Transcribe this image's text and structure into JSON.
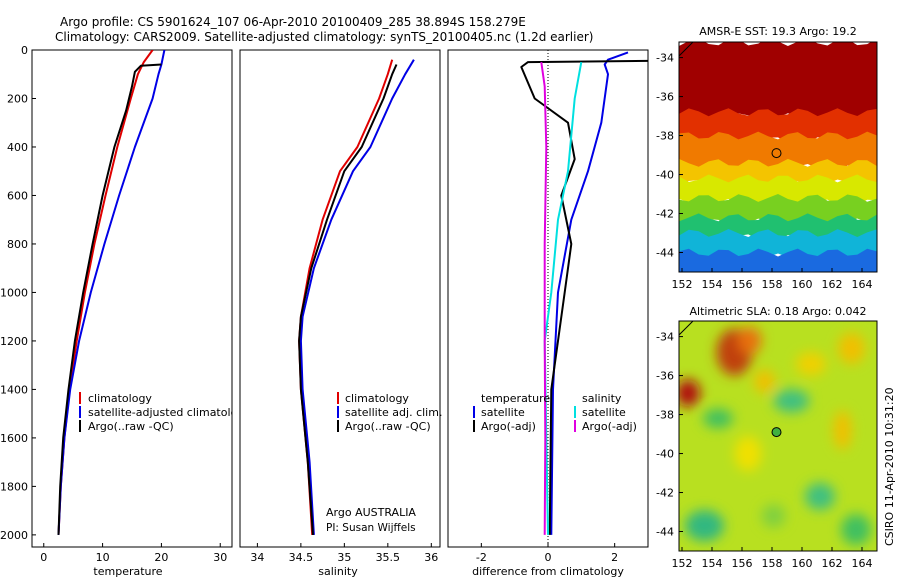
{
  "header": {
    "line1": "Argo profile: CS 5901624_107 06-Apr-2010 20100409_285 38.894S 158.279E",
    "line2": "Climatology: CARS2009. Satellite-adjusted climatology: synTS_20100405.nc (1.2d earlier)"
  },
  "depth_ticks": [
    "0",
    "200",
    "400",
    "600",
    "800",
    "1000",
    "1200",
    "1400",
    "1600",
    "1800",
    "2000"
  ],
  "credit": "CSIRO 11-Apr-2010 10:31:20",
  "colors": {
    "climatology": "#e00000",
    "satellite": "#0000e6",
    "argo": "#000000",
    "satellite_diff": "#00e0e0",
    "argo_adj": "#e000e0"
  },
  "chart_data": [
    {
      "type": "line",
      "xlabel": "temperature",
      "xticks": [
        "0",
        "10",
        "20",
        "30"
      ],
      "xlim": [
        -2,
        32
      ],
      "ylim": [
        2050,
        0
      ],
      "legend": [
        "climatology",
        "satellite-adjusted climatology",
        "Argo(..raw -QC)"
      ],
      "legend_position": "lower-center",
      "series": [
        {
          "name": "climatology",
          "color": "#e00000",
          "points": [
            [
              18.5,
              0
            ],
            [
              17,
              50
            ],
            [
              16,
              100
            ],
            [
              14.8,
              200
            ],
            [
              12.5,
              400
            ],
            [
              10.5,
              600
            ],
            [
              8.6,
              800
            ],
            [
              7,
              1000
            ],
            [
              5.6,
              1200
            ],
            [
              4.4,
              1400
            ],
            [
              3.5,
              1600
            ],
            [
              2.9,
              1800
            ],
            [
              2.5,
              2000
            ]
          ]
        },
        {
          "name": "satellite-adjusted climatology",
          "color": "#0000e6",
          "points": [
            [
              20.5,
              0
            ],
            [
              20,
              60
            ],
            [
              19.5,
              100
            ],
            [
              18.5,
              200
            ],
            [
              15.5,
              400
            ],
            [
              12.8,
              600
            ],
            [
              10.3,
              800
            ],
            [
              8,
              1000
            ],
            [
              6,
              1200
            ],
            [
              4.5,
              1400
            ],
            [
              3.5,
              1600
            ],
            [
              2.9,
              1800
            ],
            [
              2.5,
              2000
            ]
          ]
        },
        {
          "name": "Argo(..raw -QC)",
          "color": "#000000",
          "points": [
            [
              20,
              60
            ],
            [
              16.5,
              65
            ],
            [
              15.5,
              90
            ],
            [
              15,
              150
            ],
            [
              14,
              250
            ],
            [
              12,
              400
            ],
            [
              10,
              600
            ],
            [
              8.3,
              800
            ],
            [
              6.7,
              1000
            ],
            [
              5.3,
              1200
            ],
            [
              4.2,
              1400
            ],
            [
              3.3,
              1600
            ],
            [
              2.8,
              1800
            ],
            [
              2.5,
              2000
            ]
          ]
        }
      ]
    },
    {
      "type": "line",
      "xlabel": "salinity",
      "xticks": [
        "34",
        "34.5",
        "35",
        "35.5",
        "36"
      ],
      "xlim": [
        33.8,
        36.1
      ],
      "ylim": [
        2050,
        0
      ],
      "legend": [
        "climatology",
        "satellite adj. clim.",
        "Argo(..raw -QC)"
      ],
      "legend_position": "lower-right",
      "annotation": [
        "Argo AUSTRALIA",
        "PI: Susan Wijffels"
      ],
      "series": [
        {
          "name": "climatology",
          "color": "#e00000",
          "points": [
            [
              35.55,
              40
            ],
            [
              35.5,
              100
            ],
            [
              35.4,
              200
            ],
            [
              35.15,
              400
            ],
            [
              34.95,
              500
            ],
            [
              34.75,
              700
            ],
            [
              34.6,
              900
            ],
            [
              34.5,
              1100
            ],
            [
              34.48,
              1200
            ],
            [
              34.5,
              1400
            ],
            [
              34.58,
              1700
            ],
            [
              34.63,
              2000
            ]
          ]
        },
        {
          "name": "satellite adj. clim.",
          "color": "#0000e6",
          "points": [
            [
              35.8,
              40
            ],
            [
              35.7,
              100
            ],
            [
              35.55,
              200
            ],
            [
              35.3,
              400
            ],
            [
              35.1,
              500
            ],
            [
              34.85,
              700
            ],
            [
              34.65,
              900
            ],
            [
              34.52,
              1100
            ],
            [
              34.5,
              1200
            ],
            [
              34.52,
              1400
            ],
            [
              34.6,
              1700
            ],
            [
              34.65,
              2000
            ]
          ]
        },
        {
          "name": "Argo(..raw -QC)",
          "color": "#000000",
          "points": [
            [
              35.6,
              60
            ],
            [
              35.55,
              100
            ],
            [
              35.45,
              200
            ],
            [
              35.2,
              400
            ],
            [
              35,
              500
            ],
            [
              34.8,
              700
            ],
            [
              34.62,
              900
            ],
            [
              34.5,
              1100
            ],
            [
              34.48,
              1200
            ],
            [
              34.5,
              1400
            ],
            [
              34.58,
              1700
            ],
            [
              34.64,
              2000
            ]
          ]
        }
      ]
    },
    {
      "type": "line",
      "xlabel": "difference from climatology",
      "xticks": [
        "-2",
        "0",
        "2"
      ],
      "xlim": [
        -3.0,
        3.0
      ],
      "ylim": [
        2050,
        0
      ],
      "legend": [
        "temperature",
        "satellite",
        "Argo(-adj)",
        "salinity",
        "satellite",
        "Argo(-adj)"
      ],
      "legend_position": "lower-center",
      "series": [
        {
          "name": "temperature satellite",
          "color": "#0000e6",
          "points": [
            [
              2.4,
              10
            ],
            [
              1.8,
              40
            ],
            [
              1.7,
              60
            ],
            [
              1.8,
              100
            ],
            [
              1.6,
              300
            ],
            [
              1.2,
              500
            ],
            [
              0.7,
              700
            ],
            [
              0.3,
              1000
            ],
            [
              0.15,
              1400
            ],
            [
              0.1,
              2000
            ]
          ]
        },
        {
          "name": "temperature Argo(-adj)",
          "color": "#000000",
          "points": [
            [
              3,
              45
            ],
            [
              -0.6,
              50
            ],
            [
              -0.8,
              70
            ],
            [
              -0.4,
              200
            ],
            [
              0.6,
              300
            ],
            [
              0.8,
              450
            ],
            [
              0.4,
              600
            ],
            [
              0.7,
              800
            ],
            [
              0.5,
              1000
            ],
            [
              0.3,
              1200
            ],
            [
              0.1,
              1400
            ],
            [
              0.05,
              2000
            ]
          ]
        },
        {
          "name": "salinity satellite",
          "color": "#00e0e0",
          "points": [
            [
              1.0,
              50
            ],
            [
              0.8,
              200
            ],
            [
              0.6,
              500
            ],
            [
              0.3,
              700
            ],
            [
              0.1,
              1000
            ],
            [
              -0.1,
              1200
            ],
            [
              -0.05,
              1600
            ],
            [
              0,
              2000
            ]
          ]
        },
        {
          "name": "salinity Argo(-adj)",
          "color": "#e000e0",
          "points": [
            [
              -0.2,
              50
            ],
            [
              -0.1,
              150
            ],
            [
              -0.05,
              400
            ],
            [
              -0.1,
              800
            ],
            [
              -0.1,
              1200
            ],
            [
              -0.08,
              1600
            ],
            [
              -0.1,
              2000
            ]
          ]
        }
      ]
    },
    {
      "type": "heatmap",
      "title": "AMSR-E SST: 19.3 Argo: 19.2",
      "xticks": [
        "152",
        "154",
        "156",
        "158",
        "160",
        "162",
        "164"
      ],
      "yticks": [
        "-34",
        "-36",
        "-38",
        "-40",
        "-42",
        "-44"
      ],
      "xlim": [
        151.8,
        165
      ],
      "ylim": [
        -45,
        -33.2
      ],
      "marker": [
        158.3,
        -38.9
      ],
      "bands": [
        {
          "lat": [
            -33.2,
            -36.8
          ],
          "color": "#a00000"
        },
        {
          "lat": [
            -36.8,
            -38.0
          ],
          "color": "#e23000"
        },
        {
          "lat": [
            -38.0,
            -39.4
          ],
          "color": "#f07a00"
        },
        {
          "lat": [
            -39.4,
            -40.2
          ],
          "color": "#f4c400"
        },
        {
          "lat": [
            -40.2,
            -41.2
          ],
          "color": "#d8e800"
        },
        {
          "lat": [
            -41.2,
            -42.2
          ],
          "color": "#78d020"
        },
        {
          "lat": [
            -42.2,
            -43.0
          ],
          "color": "#20c070"
        },
        {
          "lat": [
            -43.0,
            -44.0
          ],
          "color": "#10b4d8"
        },
        {
          "lat": [
            -44.0,
            -45.0
          ],
          "color": "#1a6ae0"
        }
      ]
    },
    {
      "type": "heatmap",
      "title": "Altimetric SLA: 0.18 Argo: 0.042",
      "xticks": [
        "152",
        "154",
        "156",
        "158",
        "160",
        "162",
        "164"
      ],
      "yticks": [
        "-34",
        "-36",
        "-38",
        "-40",
        "-42",
        "-44"
      ],
      "xlim": [
        151.8,
        165
      ],
      "ylim": [
        -45,
        -33.2
      ],
      "marker": [
        158.3,
        -38.9
      ],
      "base_color": "#b8e020",
      "blobs": [
        {
          "cx": 155.5,
          "cy": -34.8,
          "rx": 1.2,
          "ry": 1.2,
          "color": "#c04010"
        },
        {
          "cx": 156.5,
          "cy": -34.2,
          "rx": 0.8,
          "ry": 0.7,
          "color": "#e87010"
        },
        {
          "cx": 152.4,
          "cy": -36.9,
          "rx": 0.8,
          "ry": 0.7,
          "color": "#b01010"
        },
        {
          "cx": 157.5,
          "cy": -36.3,
          "rx": 0.7,
          "ry": 0.6,
          "color": "#f0c000"
        },
        {
          "cx": 160.6,
          "cy": -35.4,
          "rx": 1.0,
          "ry": 0.6,
          "color": "#f0d000"
        },
        {
          "cx": 163.3,
          "cy": -34.6,
          "rx": 0.9,
          "ry": 0.8,
          "color": "#f0c000"
        },
        {
          "cx": 156.4,
          "cy": -40.0,
          "rx": 0.9,
          "ry": 0.9,
          "color": "#f0e000"
        },
        {
          "cx": 162.7,
          "cy": -38.8,
          "rx": 0.6,
          "ry": 1.0,
          "color": "#f0c000"
        },
        {
          "cx": 154.4,
          "cy": -38.2,
          "rx": 1.0,
          "ry": 0.5,
          "color": "#40c060"
        },
        {
          "cx": 159.3,
          "cy": -37.3,
          "rx": 1.2,
          "ry": 0.6,
          "color": "#40c080"
        },
        {
          "cx": 161.2,
          "cy": -42.2,
          "rx": 1.0,
          "ry": 0.7,
          "color": "#40c080"
        },
        {
          "cx": 153.5,
          "cy": -43.7,
          "rx": 1.3,
          "ry": 0.8,
          "color": "#30b880"
        },
        {
          "cx": 163.6,
          "cy": -43.9,
          "rx": 1.0,
          "ry": 0.8,
          "color": "#40c060"
        },
        {
          "cx": 158.1,
          "cy": -43.2,
          "rx": 0.8,
          "ry": 0.6,
          "color": "#80d040"
        }
      ]
    }
  ]
}
